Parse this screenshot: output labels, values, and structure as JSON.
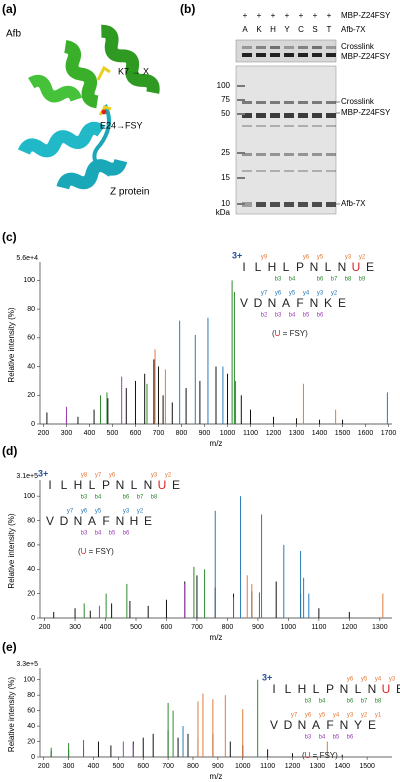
{
  "panels": {
    "a": {
      "label": "(a)",
      "afb": "Afb",
      "k7": "K7 → X",
      "e24": "E24→FSY",
      "z": "Z protein"
    },
    "b": {
      "label": "(b)",
      "plus": [
        "+",
        "+",
        "+",
        "+",
        "+",
        "+",
        "+"
      ],
      "lanes": [
        "A",
        "K",
        "H",
        "Y",
        "C",
        "S",
        "T"
      ],
      "row_labels": [
        "MBP-Z24FSY",
        "Afb-7X"
      ],
      "strip_labels": [
        "Crosslink",
        "MBP-Z24FSY"
      ],
      "mw": [
        "100",
        "75",
        "50",
        "25",
        "15",
        "10"
      ],
      "mw_unit": "kDa",
      "band_labels": [
        "Crosslink",
        "MBP-Z24FSY",
        "Afb-7X"
      ]
    }
  },
  "chart_data": [
    {
      "type": "spectrum",
      "panel_label": "(c)",
      "scale_label": "5.6e+4",
      "ylabel": "Relative intensity (%)",
      "xlabel": "m/z",
      "xlim": [
        185,
        1715
      ],
      "xticks": [
        200,
        300,
        400,
        500,
        600,
        700,
        800,
        900,
        1000,
        1100,
        1200,
        1300,
        1400,
        1500,
        1600,
        1700
      ],
      "ylim": [
        0,
        110
      ],
      "yticks": [
        0,
        20,
        40,
        60,
        80,
        100
      ],
      "series": [
        {
          "color": "#111111",
          "x": [
            215,
            300,
            350,
            420,
            480,
            560,
            600,
            640,
            680,
            700,
            720,
            760,
            820,
            880,
            950,
            1000,
            1060,
            1100,
            1200,
            1300,
            1400,
            1500
          ],
          "values": [
            8,
            6,
            5,
            10,
            18,
            25,
            30,
            35,
            45,
            40,
            20,
            15,
            25,
            30,
            40,
            35,
            20,
            10,
            5,
            4,
            3,
            3
          ]
        },
        {
          "color": "#2a7ab8",
          "x": [
            792,
            860,
            915,
            980,
            1035,
            1695
          ],
          "values": [
            72,
            62,
            74,
            40,
            30,
            22
          ]
        },
        {
          "color": "#2e8b2e",
          "x": [
            448,
            476,
            650,
            1020,
            1030
          ],
          "values": [
            20,
            22,
            28,
            100,
            92
          ]
        },
        {
          "color": "#e07b39",
          "x": [
            685,
            730,
            1330,
            1470
          ],
          "values": [
            52,
            38,
            28,
            10
          ]
        },
        {
          "color": "#9b3fb5",
          "x": [
            300,
            540
          ],
          "values": [
            12,
            33
          ]
        }
      ],
      "charge": "3+",
      "note": [
        "(",
        "U",
        " = FSY)"
      ],
      "note_colors": [
        "#222",
        "#d22",
        "#222"
      ],
      "sequences": [
        {
          "letters": [
            "I",
            "L",
            "H",
            "L",
            "P",
            "N",
            "L",
            "N",
            "U",
            "E"
          ],
          "letter_colors": [
            "#222",
            "#222",
            "#222",
            "#222",
            "#222",
            "#222",
            "#222",
            "#222",
            "#d22",
            "#222"
          ],
          "top_ions": [
            null,
            "y9",
            null,
            null,
            "y6",
            "y5",
            null,
            "y3",
            "y2",
            null
          ],
          "bottom_ions": [
            null,
            null,
            "b3",
            "b4",
            null,
            "b6",
            "b7",
            "b8",
            "b9",
            null
          ],
          "top_color": "#e07b39",
          "bottom_color": "#2e8b2e"
        },
        {
          "letters": [
            "V",
            "D",
            "N",
            "A",
            "F",
            "N",
            "K",
            "E"
          ],
          "letter_colors": [
            "#222",
            "#222",
            "#222",
            "#222",
            "#222",
            "#222",
            "#222",
            "#222"
          ],
          "top_ions": [
            null,
            "y7",
            "y6",
            "y5",
            "y4",
            "y3",
            "y2",
            null
          ],
          "bottom_ions": [
            null,
            "b2",
            "b3",
            "b4",
            "b5",
            "b6",
            null,
            null
          ],
          "top_color": "#2a7ab8",
          "bottom_color": "#9b3fb5"
        }
      ]
    },
    {
      "type": "spectrum",
      "panel_label": "(d)",
      "scale_label": "3.1e+5",
      "ylabel": "Relative intensity (%)",
      "xlabel": "m/z",
      "xlim": [
        185,
        1340
      ],
      "xticks": [
        200,
        300,
        400,
        500,
        600,
        700,
        800,
        900,
        1000,
        1100,
        1200,
        1300
      ],
      "ylim": [
        0,
        110
      ],
      "yticks": [
        0,
        20,
        40,
        60,
        80,
        100
      ],
      "series": [
        {
          "color": "#111111",
          "x": [
            230,
            300,
            350,
            420,
            480,
            540,
            600,
            660,
            700,
            760,
            820,
            880,
            960,
            1040,
            1100,
            1200
          ],
          "values": [
            5,
            8,
            6,
            12,
            14,
            10,
            15,
            30,
            35,
            25,
            20,
            22,
            30,
            20,
            8,
            5
          ]
        },
        {
          "color": "#2a7ab8",
          "x": [
            760,
            843,
            912,
            985,
            1040,
            1050,
            1067
          ],
          "values": [
            88,
            100,
            85,
            60,
            55,
            33,
            20
          ]
        },
        {
          "color": "#2e8b2e",
          "x": [
            330,
            402,
            470,
            690,
            725,
            820,
            905
          ],
          "values": [
            12,
            20,
            28,
            42,
            40,
            17,
            21
          ]
        },
        {
          "color": "#e07b39",
          "x": [
            865,
            880,
            1310
          ],
          "values": [
            35,
            28,
            20
          ]
        },
        {
          "color": "#9b3fb5",
          "x": [
            380,
            660
          ],
          "values": [
            10,
            28
          ]
        }
      ],
      "charge": "3+",
      "note": [
        "(",
        "U",
        " = FSY)"
      ],
      "note_colors": [
        "#222",
        "#d22",
        "#222"
      ],
      "sequences": [
        {
          "letters": [
            "I",
            "L",
            "H",
            "L",
            "P",
            "N",
            "L",
            "N",
            "U",
            "E"
          ],
          "letter_colors": [
            "#222",
            "#222",
            "#222",
            "#222",
            "#222",
            "#222",
            "#222",
            "#222",
            "#d22",
            "#222"
          ],
          "top_ions": [
            null,
            null,
            "y8",
            "y7",
            "y6",
            null,
            null,
            "y3",
            "y2",
            null
          ],
          "bottom_ions": [
            null,
            null,
            "b3",
            "b4",
            null,
            "b6",
            "b7",
            "b8",
            null,
            null
          ],
          "top_color": "#e07b39",
          "bottom_color": "#2e8b2e"
        },
        {
          "letters": [
            "V",
            "D",
            "N",
            "A",
            "F",
            "N",
            "H",
            "E"
          ],
          "letter_colors": [
            "#222",
            "#222",
            "#222",
            "#222",
            "#222",
            "#222",
            "#222",
            "#222"
          ],
          "top_ions": [
            null,
            "y7",
            "y6",
            "y5",
            null,
            "y3",
            "y2",
            null
          ],
          "bottom_ions": [
            null,
            null,
            "b3",
            "b4",
            "b5",
            "b6",
            null,
            null
          ],
          "top_color": "#2a7ab8",
          "bottom_color": "#9b3fb5"
        }
      ]
    },
    {
      "type": "spectrum",
      "panel_label": "(e)",
      "scale_label": "3.3e+5",
      "ylabel": "Relative intensity (%)",
      "xlabel": "m/z",
      "xlim": [
        185,
        1600
      ],
      "xticks": [
        200,
        300,
        400,
        500,
        600,
        700,
        800,
        900,
        1000,
        1100,
        1200,
        1300,
        1400,
        1500
      ],
      "ylim": [
        0,
        110
      ],
      "yticks": [
        0,
        20,
        40,
        60,
        80,
        100
      ],
      "series": [
        {
          "color": "#111111",
          "x": [
            230,
            300,
            360,
            420,
            470,
            560,
            600,
            640,
            700,
            740,
            780,
            820,
            880,
            950,
            1000,
            1100,
            1200,
            1400
          ],
          "values": [
            8,
            10,
            12,
            20,
            15,
            20,
            25,
            30,
            35,
            25,
            30,
            25,
            30,
            20,
            15,
            10,
            5,
            3
          ]
        },
        {
          "color": "#2e8b2e",
          "x": [
            230,
            300,
            360,
            700,
            720,
            1060
          ],
          "values": [
            12,
            18,
            22,
            70,
            60,
            100
          ]
        },
        {
          "color": "#e07b39",
          "x": [
            820,
            840,
            880,
            930,
            1000,
            1340
          ],
          "values": [
            72,
            82,
            75,
            80,
            62,
            20
          ]
        },
        {
          "color": "#9b3fb5",
          "x": [
            520,
            560
          ],
          "values": [
            20,
            16
          ]
        },
        {
          "color": "#2a7ab8",
          "x": [
            760
          ],
          "values": [
            40
          ]
        }
      ],
      "charge": "3+",
      "note": [
        "(",
        "U",
        " = FSY)"
      ],
      "note_colors": [
        "#222",
        "#d22",
        "#222"
      ],
      "sequences": [
        {
          "letters": [
            "I",
            "L",
            "H",
            "L",
            "P",
            "N",
            "L",
            "N",
            "U",
            "E"
          ],
          "letter_colors": [
            "#222",
            "#222",
            "#222",
            "#222",
            "#222",
            "#222",
            "#222",
            "#222",
            "#d22",
            "#222"
          ],
          "top_ions": [
            null,
            null,
            null,
            null,
            null,
            "y6",
            "y5",
            "y4",
            "y3",
            "y2"
          ],
          "bottom_ions": [
            null,
            null,
            "b3",
            "b4",
            null,
            "b6",
            "b7",
            "b8",
            null,
            null
          ],
          "top_color": "#e07b39",
          "bottom_color": "#2e8b2e"
        },
        {
          "letters": [
            "V",
            "D",
            "N",
            "A",
            "F",
            "N",
            "Y",
            "E"
          ],
          "letter_colors": [
            "#222",
            "#222",
            "#222",
            "#222",
            "#222",
            "#222",
            "#222",
            "#222"
          ],
          "top_ions": [
            null,
            "y7",
            "y6",
            "y5",
            "y4",
            "y3",
            "y2",
            "y1"
          ],
          "bottom_ions": [
            null,
            null,
            "b3",
            "b4",
            "b5",
            "b6",
            null,
            null
          ],
          "top_color": "#e07b39",
          "bottom_color": "#9b3fb5"
        }
      ]
    }
  ]
}
